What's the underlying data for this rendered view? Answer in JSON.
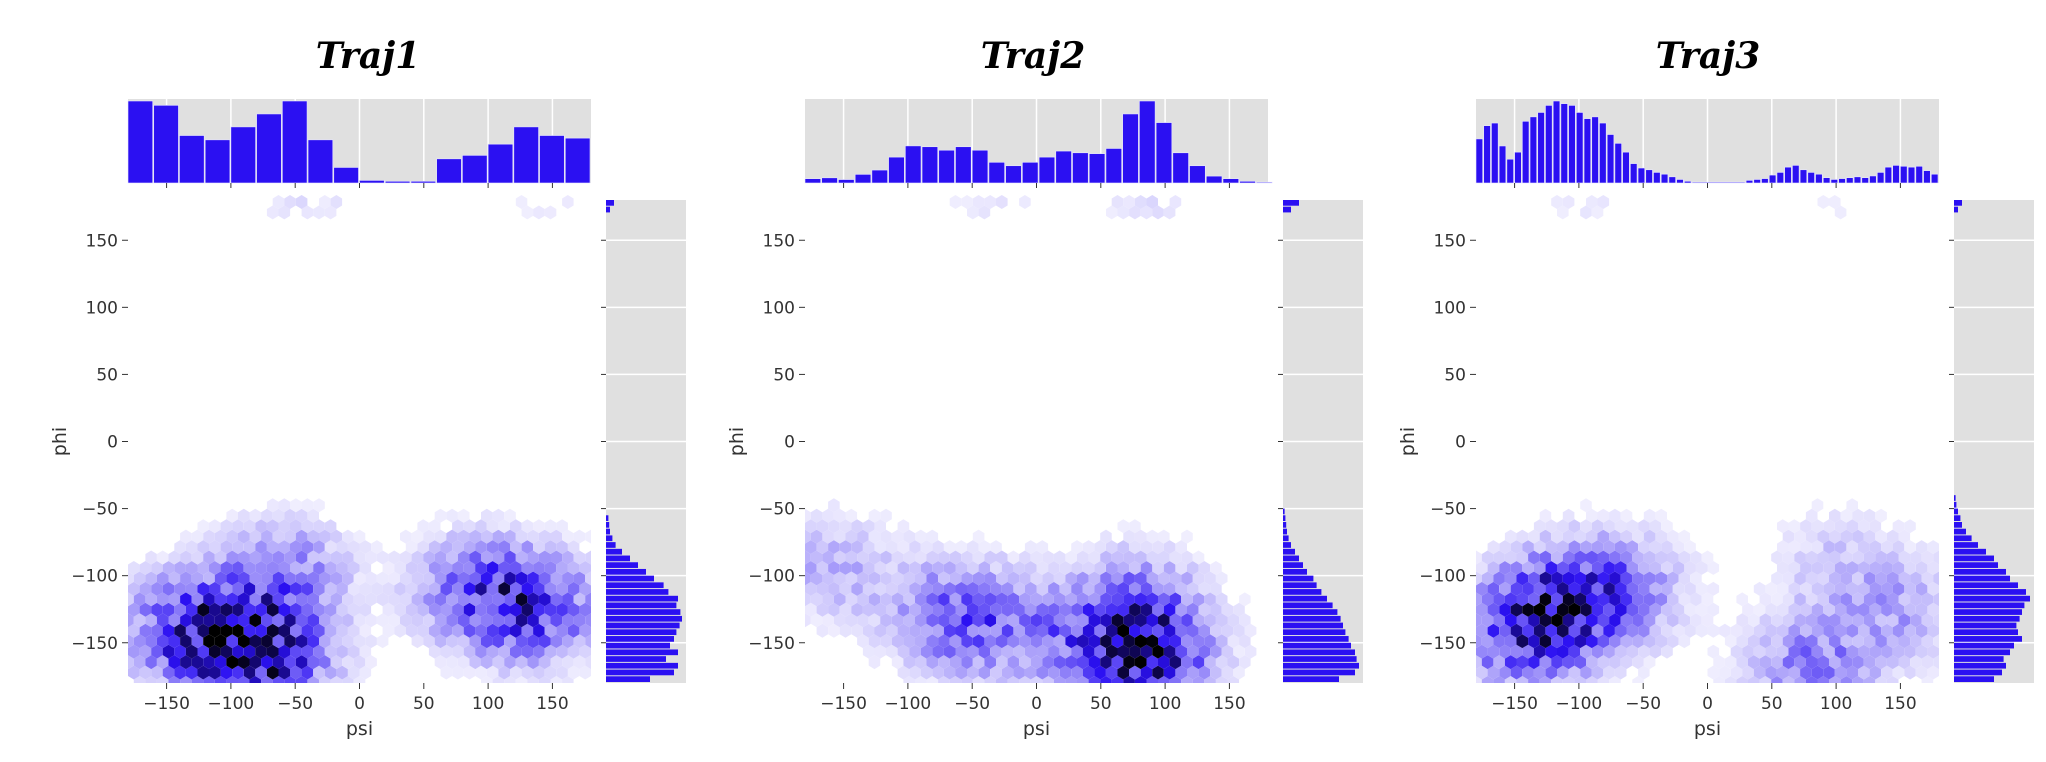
{
  "figure": {
    "background": "#ffffff",
    "marginal_background": "#e0e0e0",
    "bar_color": "#2b10f2",
    "hex_color_low": "#ffffff",
    "hex_color_mid": "#2b10f2",
    "hex_color_high": "#000000"
  },
  "chart_data": [
    {
      "type": "hexbin",
      "title": "Traj1",
      "xlabel": "psi",
      "ylabel": "phi",
      "xlim": [
        -180,
        180
      ],
      "ylim": [
        -180,
        180
      ],
      "xticks": [
        -150,
        -100,
        -50,
        0,
        50,
        100,
        150
      ],
      "yticks": [
        -150,
        -100,
        -50,
        0,
        50,
        100,
        150
      ],
      "x_hist": {
        "type": "bar",
        "bins": [
          -180,
          -160,
          -140,
          -120,
          -100,
          -80,
          -60,
          -40,
          -20,
          0,
          20,
          40,
          60,
          80,
          100,
          120,
          140,
          160
        ],
        "values": [
          0.95,
          0.9,
          0.55,
          0.5,
          0.65,
          0.8,
          0.95,
          0.5,
          0.18,
          0.03,
          0.02,
          0.02,
          0.28,
          0.32,
          0.45,
          0.65,
          0.55,
          0.52
        ]
      },
      "y_hist": {
        "type": "bar",
        "bins": [
          -180,
          -175,
          -170,
          -165,
          -160,
          -155,
          -150,
          -145,
          -140,
          -135,
          -130,
          -125,
          -120,
          -115,
          -110,
          -105,
          -100,
          -95,
          -90,
          -85,
          -80,
          -75,
          -70,
          -65,
          -60,
          170,
          175
        ],
        "values": [
          0.55,
          0.85,
          0.9,
          0.75,
          0.9,
          0.8,
          0.85,
          0.88,
          0.92,
          0.95,
          0.93,
          0.88,
          0.9,
          0.78,
          0.72,
          0.6,
          0.5,
          0.4,
          0.3,
          0.2,
          0.12,
          0.08,
          0.05,
          0.04,
          0.03,
          0.05,
          0.1
        ]
      },
      "clusters": [
        {
          "x": -130,
          "y": -140,
          "w": 1.0
        },
        {
          "x": -75,
          "y": -160,
          "w": 1.2
        },
        {
          "x": -60,
          "y": -100,
          "w": 0.6
        },
        {
          "x": 135,
          "y": -125,
          "w": 0.9
        },
        {
          "x": 90,
          "y": -110,
          "w": 0.6
        },
        {
          "x": -40,
          "y": 175,
          "w": 0.2
        },
        {
          "x": 145,
          "y": 175,
          "w": 0.15
        }
      ]
    },
    {
      "type": "hexbin",
      "title": "Traj2",
      "xlabel": "psi",
      "ylabel": "phi",
      "xlim": [
        -180,
        180
      ],
      "ylim": [
        -180,
        180
      ],
      "xticks": [
        -150,
        -100,
        -50,
        0,
        50,
        100,
        150
      ],
      "yticks": [
        -150,
        -100,
        -50,
        0,
        50,
        100,
        150
      ],
      "x_hist": {
        "type": "bar",
        "bins": [
          -180,
          -167,
          -154,
          -141,
          -128,
          -115,
          -102,
          -89,
          -76,
          -63,
          -50,
          -37,
          -24,
          -11,
          2,
          15,
          28,
          41,
          54,
          67,
          80,
          93,
          106,
          119,
          132,
          145,
          158,
          171
        ],
        "values": [
          0.05,
          0.06,
          0.04,
          0.1,
          0.15,
          0.3,
          0.43,
          0.42,
          0.38,
          0.42,
          0.38,
          0.24,
          0.2,
          0.24,
          0.3,
          0.37,
          0.35,
          0.34,
          0.4,
          0.8,
          0.95,
          0.7,
          0.35,
          0.2,
          0.08,
          0.05,
          0.02,
          0.01
        ]
      },
      "y_hist": {
        "type": "bar",
        "bins": [
          -180,
          -175,
          -170,
          -165,
          -160,
          -155,
          -150,
          -145,
          -140,
          -135,
          -130,
          -125,
          -120,
          -115,
          -110,
          -105,
          -100,
          -95,
          -90,
          -85,
          -80,
          -75,
          -70,
          -65,
          -60,
          -55,
          170,
          175
        ],
        "values": [
          0.7,
          0.9,
          0.95,
          0.92,
          0.9,
          0.85,
          0.82,
          0.78,
          0.75,
          0.72,
          0.68,
          0.62,
          0.55,
          0.48,
          0.42,
          0.38,
          0.3,
          0.25,
          0.2,
          0.15,
          0.1,
          0.07,
          0.05,
          0.04,
          0.03,
          0.02,
          0.1,
          0.2
        ]
      },
      "clusters": [
        {
          "x": -60,
          "y": -130,
          "w": 0.9
        },
        {
          "x": 85,
          "y": -160,
          "w": 1.3
        },
        {
          "x": 75,
          "y": -120,
          "w": 0.6
        },
        {
          "x": -160,
          "y": -95,
          "w": 0.4
        },
        {
          "x": 10,
          "y": -150,
          "w": 0.5
        },
        {
          "x": 85,
          "y": 175,
          "w": 0.25
        },
        {
          "x": -40,
          "y": 175,
          "w": 0.2
        }
      ]
    },
    {
      "type": "hexbin",
      "title": "Traj3",
      "xlabel": "psi",
      "ylabel": "phi",
      "xlim": [
        -180,
        180
      ],
      "ylim": [
        -180,
        180
      ],
      "xticks": [
        -150,
        -100,
        -50,
        0,
        50,
        100,
        150
      ],
      "yticks": [
        -150,
        -100,
        -50,
        0,
        50,
        100,
        150
      ],
      "x_hist": {
        "type": "bar",
        "bins": [
          -180,
          -174,
          -168,
          -162,
          -156,
          -150,
          -144,
          -138,
          -132,
          -126,
          -120,
          -114,
          -108,
          -102,
          -96,
          -90,
          -84,
          -78,
          -72,
          -66,
          -60,
          -54,
          -48,
          -42,
          -36,
          -30,
          -24,
          -18,
          -12,
          30,
          36,
          42,
          48,
          54,
          60,
          66,
          72,
          78,
          84,
          90,
          96,
          102,
          108,
          114,
          120,
          126,
          132,
          138,
          144,
          150,
          156,
          162,
          168,
          174
        ],
        "values": [
          0.5,
          0.65,
          0.68,
          0.42,
          0.27,
          0.35,
          0.7,
          0.75,
          0.8,
          0.88,
          0.93,
          0.9,
          0.88,
          0.8,
          0.73,
          0.75,
          0.68,
          0.55,
          0.45,
          0.35,
          0.22,
          0.17,
          0.15,
          0.12,
          0.1,
          0.07,
          0.04,
          0.02,
          0.01,
          0.03,
          0.04,
          0.05,
          0.09,
          0.12,
          0.18,
          0.2,
          0.15,
          0.12,
          0.1,
          0.06,
          0.04,
          0.05,
          0.06,
          0.07,
          0.06,
          0.08,
          0.12,
          0.18,
          0.2,
          0.19,
          0.18,
          0.19,
          0.14,
          0.1
        ]
      },
      "y_hist": {
        "type": "bar",
        "bins": [
          -180,
          -175,
          -170,
          -165,
          -160,
          -155,
          -150,
          -145,
          -140,
          -135,
          -130,
          -125,
          -120,
          -115,
          -110,
          -105,
          -100,
          -95,
          -90,
          -85,
          -80,
          -75,
          -70,
          -65,
          -60,
          -55,
          -50,
          -45,
          170,
          175
        ],
        "values": [
          0.5,
          0.6,
          0.65,
          0.62,
          0.7,
          0.75,
          0.85,
          0.8,
          0.78,
          0.82,
          0.85,
          0.88,
          0.95,
          0.9,
          0.8,
          0.7,
          0.65,
          0.55,
          0.5,
          0.4,
          0.3,
          0.22,
          0.15,
          0.1,
          0.08,
          0.05,
          0.03,
          0.02,
          0.05,
          0.1
        ]
      },
      "clusters": [
        {
          "x": -120,
          "y": -125,
          "w": 1.3
        },
        {
          "x": -70,
          "y": -110,
          "w": 0.8
        },
        {
          "x": -150,
          "y": -150,
          "w": 0.7
        },
        {
          "x": 80,
          "y": -170,
          "w": 0.8
        },
        {
          "x": 150,
          "y": -125,
          "w": 0.5
        },
        {
          "x": 100,
          "y": -90,
          "w": 0.3
        },
        {
          "x": 100,
          "y": 175,
          "w": 0.15
        },
        {
          "x": -90,
          "y": 175,
          "w": 0.2
        }
      ]
    }
  ]
}
